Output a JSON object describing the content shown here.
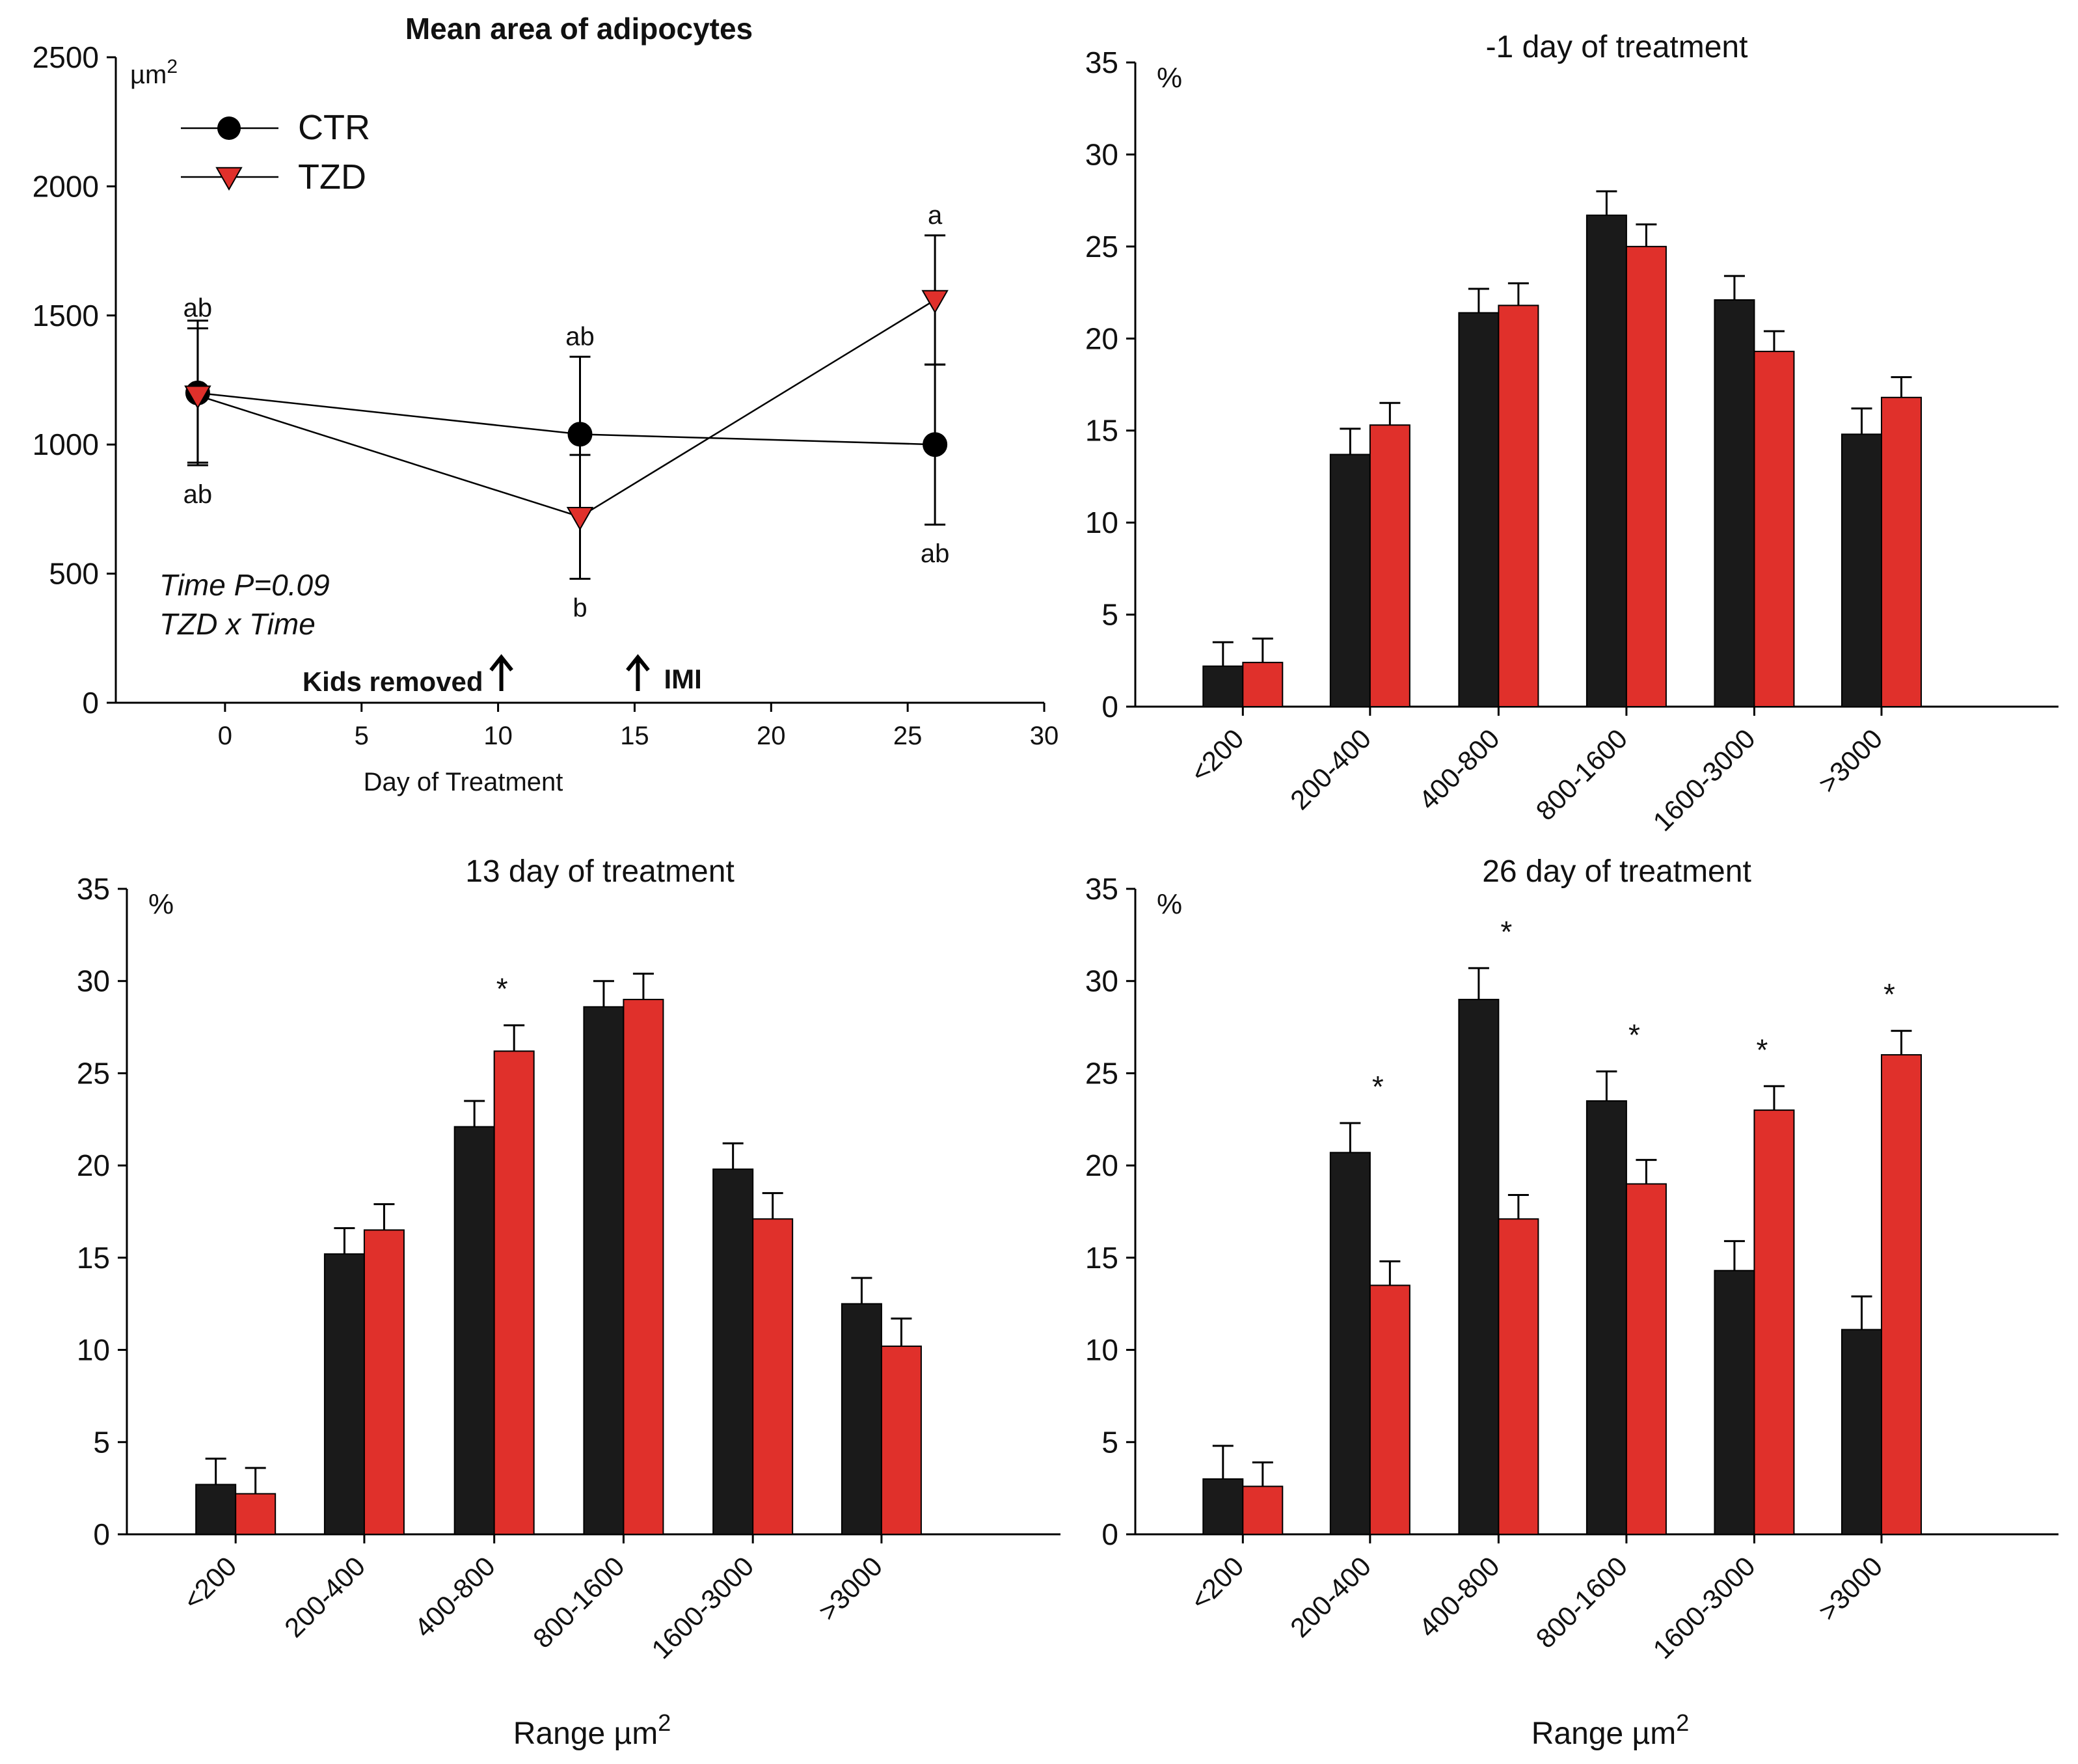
{
  "chart_data": [
    {
      "id": "p1",
      "type": "line",
      "title": "Mean area of adipocytes",
      "ylabel": "µm",
      "ylabel_sup": "2",
      "xlabel": "Day of Treatment",
      "xlim": [
        -4,
        30
      ],
      "ylim": [
        0,
        2500
      ],
      "xticks": [
        "0",
        "5",
        "10",
        "15",
        "20",
        "25",
        "30"
      ],
      "xtick_values": [
        0,
        5,
        10,
        15,
        20,
        25,
        30
      ],
      "yticks": [
        "0",
        "500",
        "1000",
        "1500",
        "2000",
        "2500"
      ],
      "ytick_values": [
        0,
        500,
        1000,
        1500,
        2000,
        2500
      ],
      "legend": {
        "position": "top-left",
        "entries": [
          "CTR",
          "TZD"
        ]
      },
      "series": [
        {
          "name": "CTR",
          "color": "#000000",
          "marker": "circle",
          "x": [
            -1,
            13,
            26
          ],
          "y": [
            1200,
            1040,
            1000
          ],
          "err": [
            280,
            300,
            310
          ],
          "labels": [
            "ab",
            "ab",
            "ab"
          ],
          "label_pos": [
            "below",
            "above",
            "below"
          ]
        },
        {
          "name": "TZD",
          "color": "#e0302b",
          "marker": "triangle-down",
          "x": [
            -1,
            13,
            26
          ],
          "y": [
            1190,
            720,
            1560
          ],
          "err": [
            260,
            240,
            250
          ],
          "labels": [
            "ab",
            "b",
            "a"
          ],
          "label_pos": [
            "above",
            "below",
            "above"
          ]
        }
      ],
      "stats": [
        "Time P=0.09",
        "TZD x Time"
      ],
      "annotations": [
        {
          "text": "Kids removed",
          "x": 10
        },
        {
          "text": "IMI",
          "x": 15
        }
      ]
    },
    {
      "id": "p2",
      "type": "bar",
      "title": "-1 day of treatment",
      "ylabel": "%",
      "ylim": [
        0,
        35
      ],
      "yticks": [
        "0",
        "5",
        "10",
        "15",
        "20",
        "25",
        "30",
        "35"
      ],
      "ytick_values": [
        0,
        5,
        10,
        15,
        20,
        25,
        30,
        35
      ],
      "categories": [
        "<200",
        "200-400",
        "400-800",
        "800-1600",
        "1600-3000",
        ">3000"
      ],
      "series": [
        {
          "name": "CTR",
          "color": "#1a1a1a",
          "values": [
            2.2,
            13.7,
            21.4,
            26.7,
            22.1,
            14.8
          ],
          "err": [
            1.3,
            1.4,
            1.3,
            1.3,
            1.3,
            1.4
          ]
        },
        {
          "name": "TZD",
          "color": "#e0302b",
          "values": [
            2.4,
            15.3,
            21.8,
            25.0,
            19.3,
            16.8
          ],
          "err": [
            1.3,
            1.2,
            1.2,
            1.2,
            1.1,
            1.1
          ]
        }
      ],
      "significance": []
    },
    {
      "id": "p3",
      "type": "bar",
      "title": "13 day of treatment",
      "ylabel": "%",
      "xlabel": "Range µm",
      "xlabel_sup": "2",
      "ylim": [
        0,
        35
      ],
      "yticks": [
        "0",
        "5",
        "10",
        "15",
        "20",
        "25",
        "30",
        "35"
      ],
      "ytick_values": [
        0,
        5,
        10,
        15,
        20,
        25,
        30,
        35
      ],
      "categories": [
        "<200",
        "200-400",
        "400-800",
        "800-1600",
        "1600-3000",
        ">3000"
      ],
      "series": [
        {
          "name": "CTR",
          "color": "#1a1a1a",
          "values": [
            2.7,
            15.2,
            22.1,
            28.6,
            19.8,
            12.5
          ],
          "err": [
            1.4,
            1.4,
            1.4,
            1.4,
            1.4,
            1.4
          ]
        },
        {
          "name": "TZD",
          "color": "#e0302b",
          "values": [
            2.2,
            16.5,
            26.2,
            29.0,
            17.1,
            10.2
          ],
          "err": [
            1.4,
            1.4,
            1.4,
            1.4,
            1.4,
            1.5
          ]
        }
      ],
      "significance": [
        "",
        "",
        "*",
        "",
        "",
        ""
      ]
    },
    {
      "id": "p4",
      "type": "bar",
      "title": "26 day of treatment",
      "ylabel": "%",
      "xlabel": "Range µm",
      "xlabel_sup": "2",
      "ylim": [
        0,
        35
      ],
      "yticks": [
        "0",
        "5",
        "10",
        "15",
        "20",
        "25",
        "30",
        "35"
      ],
      "ytick_values": [
        0,
        5,
        10,
        15,
        20,
        25,
        30,
        35
      ],
      "categories": [
        "<200",
        "200-400",
        "400-800",
        "800-1600",
        "1600-3000",
        ">3000"
      ],
      "series": [
        {
          "name": "CTR",
          "color": "#1a1a1a",
          "values": [
            3.0,
            20.7,
            29.0,
            23.5,
            14.3,
            11.1
          ],
          "err": [
            1.8,
            1.6,
            1.7,
            1.6,
            1.6,
            1.8
          ]
        },
        {
          "name": "TZD",
          "color": "#e0302b",
          "values": [
            2.6,
            13.5,
            17.1,
            19.0,
            23.0,
            26.0
          ],
          "err": [
            1.3,
            1.3,
            1.3,
            1.3,
            1.3,
            1.3
          ]
        }
      ],
      "significance": [
        "",
        "*",
        "*",
        "*",
        "*",
        "*"
      ]
    }
  ]
}
